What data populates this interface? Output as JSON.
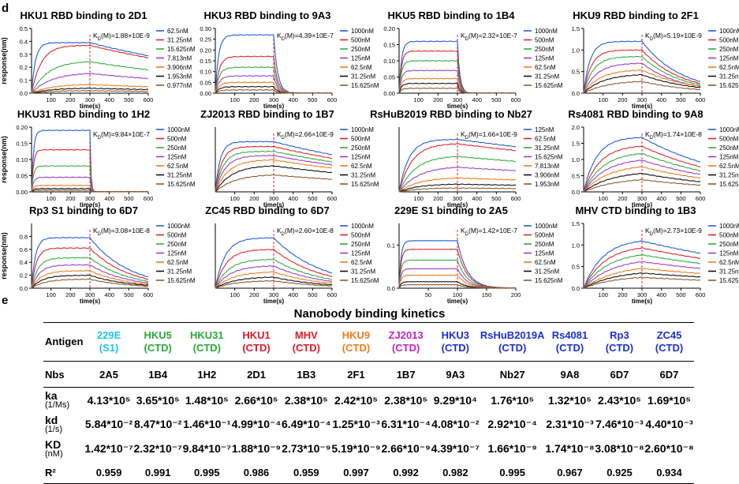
{
  "panel_letters": {
    "d": "d",
    "e": "e"
  },
  "y_axis_title": "response(nm)",
  "x_axis_title": "time(s)",
  "chart_data": [
    {
      "type": "line",
      "title": "HKU1 RBD binding to 2D1",
      "kd_label": "K",
      "kd_sub": "D",
      "kd_value": "(M)=1.88×10E-9",
      "xlim": [
        0,
        600
      ],
      "ylim": [
        0,
        0.5
      ],
      "xticks": [
        100,
        200,
        300,
        400,
        500,
        600
      ],
      "yticks": [
        0,
        0.1,
        0.2,
        0.3,
        0.4,
        0.5
      ],
      "ytick_labels": [
        "0.0",
        "0.1",
        "0.2",
        "0.3",
        "0.4",
        "0.5"
      ],
      "legend": [
        "62.5nM",
        "31.25nM",
        "15.625nM",
        "7.813nM",
        "3.906nM",
        "1.953nM",
        "0.977nM"
      ],
      "plateaus": [
        0.39,
        0.37,
        0.25,
        0.16,
        0.07,
        0.04,
        0.02
      ],
      "rates": [
        0.05,
        0.02,
        0.012,
        0.01,
        0.01,
        0.01,
        0.01
      ],
      "offs": [
        0.001,
        0.001,
        0.001,
        0.001,
        0.001,
        0.001,
        0.001
      ],
      "assoc_end": 300,
      "end": 600
    },
    {
      "type": "line",
      "title": "HKU3 RBD binding to 9A3",
      "kd_label": "K",
      "kd_sub": "D",
      "kd_value": "(M)=4.39×10E-7",
      "xlim": [
        0,
        600
      ],
      "ylim": [
        0,
        0.3
      ],
      "xticks": [
        100,
        200,
        300,
        400,
        500,
        600
      ],
      "yticks": [
        0,
        0.05,
        0.1,
        0.15,
        0.2,
        0.25,
        0.3
      ],
      "ytick_labels": [
        "0.00",
        "0.05",
        "0.10",
        "0.15",
        "0.20",
        "0.25",
        "0.30"
      ],
      "legend": [
        "1000nM",
        "500nM",
        "250nM",
        "125nM",
        "62.5nM",
        "31.25nM",
        "15.625nM"
      ],
      "plateaus": [
        0.27,
        0.17,
        0.12,
        0.08,
        0.05,
        0.03,
        0.015
      ],
      "rates": [
        0.06,
        0.05,
        0.05,
        0.05,
        0.05,
        0.05,
        0.05
      ],
      "offs": [
        0.05,
        0.05,
        0.05,
        0.05,
        0.05,
        0.05,
        0.05
      ],
      "assoc_end": 300,
      "end": 600
    },
    {
      "type": "line",
      "title": "HKU5 RBD binding to 1B4",
      "kd_label": "K",
      "kd_sub": "D",
      "kd_value": "(M)=2.32×10E-7",
      "xlim": [
        0,
        600
      ],
      "ylim": [
        0,
        0.2
      ],
      "xticks": [
        100,
        200,
        300,
        400,
        500,
        600
      ],
      "yticks": [
        0,
        0.05,
        0.1,
        0.15,
        0.2
      ],
      "ytick_labels": [
        "0.00",
        "0.05",
        "0.10",
        "0.15",
        "0.20"
      ],
      "legend": [
        "1000nM",
        "500nM",
        "250nM",
        "125nM",
        "62.5nM",
        "31.25nM",
        "15.625nM"
      ],
      "plateaus": [
        0.16,
        0.13,
        0.1,
        0.07,
        0.045,
        0.03,
        0.015
      ],
      "rates": [
        0.08,
        0.08,
        0.08,
        0.08,
        0.08,
        0.08,
        0.08
      ],
      "offs": [
        0.08,
        0.08,
        0.08,
        0.08,
        0.08,
        0.08,
        0.08
      ],
      "assoc_end": 300,
      "end": 600
    },
    {
      "type": "line",
      "title": "HKU9 RBD binding to 2F1",
      "kd_label": "K",
      "kd_sub": "D",
      "kd_value": "(M)=5.19×10E-9",
      "xlim": [
        0,
        600
      ],
      "ylim": [
        0,
        1.5
      ],
      "xticks": [
        100,
        200,
        300,
        400,
        500,
        600
      ],
      "yticks": [
        0,
        0.5,
        1.0,
        1.5
      ],
      "ytick_labels": [
        "0.0",
        "0.5",
        "1.0",
        "1.5"
      ],
      "legend": [
        "1000nM",
        "500nM",
        "250nM",
        "125nM",
        "62.5nM",
        "31.25nM",
        "15.625nM"
      ],
      "plateaus": [
        1.2,
        1.0,
        0.85,
        0.7,
        0.55,
        0.45,
        0.3
      ],
      "rates": [
        0.03,
        0.025,
        0.02,
        0.015,
        0.012,
        0.01,
        0.008
      ],
      "offs": [
        0.005,
        0.005,
        0.005,
        0.005,
        0.004,
        0.004,
        0.004
      ],
      "assoc_end": 300,
      "end": 600
    },
    {
      "type": "line",
      "title": "HKU31 RBD binding to 1H2",
      "kd_label": "K",
      "kd_sub": "D",
      "kd_value": "(M)=9.84×10E-7",
      "xlim": [
        0,
        600
      ],
      "ylim": [
        0,
        0.2
      ],
      "xticks": [
        100,
        200,
        300,
        400,
        500,
        600
      ],
      "yticks": [
        0,
        0.05,
        0.1,
        0.15,
        0.2
      ],
      "ytick_labels": [
        "0.00",
        "0.05",
        "0.10",
        "0.15",
        "0.20"
      ],
      "legend": [
        "1000nM",
        "500nM",
        "250nM",
        "125nM",
        "62.5nM",
        "31.25nM",
        "15.625nM"
      ],
      "plateaus": [
        0.19,
        0.13,
        0.08,
        0.045,
        0.02,
        0.01,
        0.005
      ],
      "rates": [
        0.1,
        0.1,
        0.1,
        0.1,
        0.1,
        0.1,
        0.1
      ],
      "offs": [
        0.2,
        0.2,
        0.2,
        0.2,
        0.2,
        0.2,
        0.2
      ],
      "assoc_end": 300,
      "end": 600
    },
    {
      "type": "line",
      "title": "ZJ2013 RBD binding to 1B7",
      "kd_label": "K",
      "kd_sub": "D",
      "kd_value": "(M)=2.66×10E-9",
      "xlim": [
        0,
        600
      ],
      "ylim": [
        0,
        0.8
      ],
      "xticks": [
        100,
        200,
        300,
        400,
        500,
        600
      ],
      "yticks": [],
      "ytick_labels": [],
      "legend": [
        "1000nM",
        "500nM",
        "250nM",
        "125nM",
        "62.5nM",
        "31.25nM",
        "15.625nM"
      ],
      "plateaus": [
        0.62,
        0.56,
        0.5,
        0.45,
        0.4,
        0.33,
        0.22
      ],
      "rates": [
        0.04,
        0.03,
        0.025,
        0.02,
        0.015,
        0.012,
        0.01
      ],
      "offs": [
        0.001,
        0.001,
        0.001,
        0.001,
        0.001,
        0.001,
        0.001
      ],
      "assoc_end": 300,
      "end": 600
    },
    {
      "type": "line",
      "title": "RsHuB2019 RBD binding to Nb27",
      "kd_label": "K",
      "kd_sub": "D",
      "kd_value": "(M)=1.66×10E-9",
      "xlim": [
        0,
        600
      ],
      "ylim": [
        0,
        0.8
      ],
      "xticks": [
        100,
        200,
        300,
        400,
        500,
        600
      ],
      "yticks": [],
      "ytick_labels": [],
      "legend": [
        "125nM",
        "62.5nM",
        "31.25nM",
        "15.625nM",
        "7.813nM",
        "3.906nM",
        "1.953nM"
      ],
      "plateaus": [
        0.65,
        0.6,
        0.45,
        0.32,
        0.18,
        0.1,
        0.05
      ],
      "rates": [
        0.02,
        0.015,
        0.012,
        0.01,
        0.01,
        0.01,
        0.01
      ],
      "offs": [
        0.0005,
        0.0005,
        0.0005,
        0.0005,
        0.0005,
        0.0005,
        0.0005
      ],
      "assoc_end": 300,
      "end": 600
    },
    {
      "type": "line",
      "title": "Rs4081 RBD binding to 9A8",
      "kd_label": "K",
      "kd_sub": "D",
      "kd_value": "(M)=1.74×10E-8",
      "xlim": [
        0,
        600
      ],
      "ylim": [
        0,
        2.0
      ],
      "xticks": [
        100,
        200,
        300,
        400,
        500,
        600
      ],
      "yticks": [
        0,
        0.5,
        1.0,
        1.5,
        2.0
      ],
      "ytick_labels": [
        "0.0",
        "0.5",
        "1.0",
        "1.5",
        "2.0"
      ],
      "legend": [
        "1000nM",
        "500nM",
        "250nM",
        "125nM",
        "62.5nM",
        "31.25nM",
        "15.625nM"
      ],
      "plateaus": [
        1.7,
        1.45,
        1.25,
        1.05,
        0.85,
        0.65,
        0.45
      ],
      "rates": [
        0.015,
        0.012,
        0.01,
        0.009,
        0.008,
        0.007,
        0.006
      ],
      "offs": [
        0.002,
        0.002,
        0.002,
        0.002,
        0.002,
        0.002,
        0.002
      ],
      "assoc_end": 300,
      "end": 600
    },
    {
      "type": "line",
      "title": "Rp3 S1 binding to 6D7",
      "kd_label": "K",
      "kd_sub": "D",
      "kd_value": "(M)=3.08×10E-8",
      "xlim": [
        0,
        600
      ],
      "ylim": [
        0,
        1.0
      ],
      "xticks": [
        100,
        200,
        300,
        400,
        500,
        600
      ],
      "yticks": [
        0,
        0.2,
        0.4,
        0.6,
        0.8
      ],
      "ytick_labels": [
        "0.0",
        "0.2",
        "0.4",
        "0.6",
        "0.8"
      ],
      "legend": [
        "1000nM",
        "500nM",
        "250nM",
        "125nM",
        "62.5nM",
        "31.25nM",
        "15.625nM"
      ],
      "plateaus": [
        0.78,
        0.62,
        0.47,
        0.36,
        0.27,
        0.2,
        0.14
      ],
      "rates": [
        0.05,
        0.04,
        0.03,
        0.025,
        0.02,
        0.018,
        0.015
      ],
      "offs": [
        0.005,
        0.005,
        0.005,
        0.005,
        0.005,
        0.005,
        0.005
      ],
      "assoc_end": 300,
      "end": 600
    },
    {
      "type": "line",
      "title": "ZC45 RBD binding to 6D7",
      "kd_label": "K",
      "kd_sub": "D",
      "kd_value": "(M)=2.60×10E-8",
      "xlim": [
        0,
        600
      ],
      "ylim": [
        0,
        1.0
      ],
      "xticks": [
        100,
        200,
        300,
        400,
        500,
        600
      ],
      "yticks": [],
      "ytick_labels": [],
      "legend": [
        "1000nM",
        "500nM",
        "250nM",
        "125nM",
        "62.5nM",
        "31.25nM",
        "15.625nM"
      ],
      "plateaus": [
        0.78,
        0.6,
        0.45,
        0.35,
        0.26,
        0.18,
        0.12
      ],
      "rates": [
        0.02,
        0.018,
        0.015,
        0.013,
        0.011,
        0.01,
        0.01
      ],
      "offs": [
        0.004,
        0.004,
        0.004,
        0.004,
        0.004,
        0.004,
        0.004
      ],
      "assoc_end": 300,
      "end": 600
    },
    {
      "type": "line",
      "title": "229E S1 binding to 2A5",
      "kd_label": "K",
      "kd_sub": "D",
      "kd_value": "(M)=1.42×10E-7",
      "xlim": [
        0,
        200
      ],
      "ylim": [
        0,
        0.15
      ],
      "xticks": [
        50,
        100,
        150,
        200
      ],
      "yticks": [
        0,
        0.1
      ],
      "ytick_labels": [
        "0.0",
        "0.1"
      ],
      "legend": [
        "1000nM",
        "500nM",
        "250nM",
        "125nM",
        "62.5nM",
        "31.25nM",
        "15.625nM"
      ],
      "plateaus": [
        0.11,
        0.09,
        0.065,
        0.045,
        0.03,
        0.015,
        0.008
      ],
      "rates": [
        0.3,
        0.3,
        0.3,
        0.3,
        0.3,
        0.3,
        0.3
      ],
      "offs": [
        0.06,
        0.06,
        0.06,
        0.06,
        0.06,
        0.06,
        0.06
      ],
      "assoc_end": 100,
      "end": 200
    },
    {
      "type": "line",
      "title": "MHV CTD binding to 1B3",
      "kd_label": "K",
      "kd_sub": "D",
      "kd_value": "(M)=2.73×10E-9",
      "xlim": [
        0,
        600
      ],
      "ylim": [
        0,
        1.5
      ],
      "xticks": [
        100,
        200,
        300,
        400,
        500,
        600
      ],
      "yticks": [
        0,
        0.5,
        1.0,
        1.5
      ],
      "ytick_labels": [
        "0.0",
        "0.5",
        "1.0",
        "1.5"
      ],
      "legend": [
        "1000nM",
        "500nM",
        "250nM",
        "125nM",
        "62.5nM",
        "31.25nM",
        "15.625nM"
      ],
      "plateaus": [
        1.15,
        1.0,
        0.85,
        0.7,
        0.55,
        0.42,
        0.3
      ],
      "rates": [
        0.01,
        0.009,
        0.008,
        0.007,
        0.006,
        0.006,
        0.006
      ],
      "offs": [
        0.001,
        0.001,
        0.001,
        0.001,
        0.001,
        0.001,
        0.001
      ],
      "assoc_end": 300,
      "end": 600
    }
  ],
  "series_colors": [
    "#1f5fd6",
    "#e0262a",
    "#2fae3f",
    "#9b3fc7",
    "#f07c1a",
    "#111111",
    "#8a5a2b"
  ],
  "table": {
    "title": "Nanobody binding kinetics",
    "row_labels": {
      "antigen": "Antigen",
      "nbs": "Nbs",
      "ka": "ka",
      "ka_unit": "(1/Ms)",
      "kd": "kd",
      "kd_unit": "(1/s)",
      "KD": "KD",
      "KD_unit": "(nM)",
      "r2": "R²"
    },
    "columns": [
      {
        "antigen": "229E",
        "sub": "(S1)",
        "color": "#22c3e6",
        "nb": "2A5",
        "ka": "4.13*10⁵",
        "kd": "5.84*10⁻²",
        "KD": "1.42*10⁻⁷",
        "r2": "0.959"
      },
      {
        "antigen": "HKU5",
        "sub": "(CTD)",
        "color": "#2aa83a",
        "nb": "1B4",
        "ka": "3.65*10⁵",
        "kd": "8.47*10⁻²",
        "KD": "2.32*10⁻⁷",
        "r2": "0.991"
      },
      {
        "antigen": "HKU31",
        "sub": "(CTD)",
        "color": "#2aa83a",
        "nb": "1H2",
        "ka": "1.48*10⁵",
        "kd": "1.46*10⁻¹",
        "KD": "9.84*10⁻⁷",
        "r2": "0.995"
      },
      {
        "antigen": "HKU1",
        "sub": "(CTD)",
        "color": "#e0182a",
        "nb": "2D1",
        "ka": "2.66*10⁵",
        "kd": "4.99*10⁻⁴",
        "KD": "1.88*10⁻⁹",
        "r2": "0.986"
      },
      {
        "antigen": "MHV",
        "sub": "(CTD)",
        "color": "#e0182a",
        "nb": "1B3",
        "ka": "2.38*10⁵",
        "kd": "6.49*10⁻⁴",
        "KD": "2.73*10⁻⁹",
        "r2": "0.959"
      },
      {
        "antigen": "HKU9",
        "sub": "(CTD)",
        "color": "#f07c1a",
        "nb": "2F1",
        "ka": "2.42*10⁵",
        "kd": "1.25*10⁻³",
        "KD": "5.19*10⁻⁹",
        "r2": "0.997"
      },
      {
        "antigen": "ZJ2013",
        "sub": "(CTD)",
        "color": "#c023c8",
        "nb": "1B7",
        "ka": "2.38*10⁵",
        "kd": "6.31*10⁻⁴",
        "KD": "2.66*10⁻⁹",
        "r2": "0.992"
      },
      {
        "antigen": "HKU3",
        "sub": "(CTD)",
        "color": "#1c2fd8",
        "nb": "9A3",
        "ka": "9.29*10⁴",
        "kd": "4.08*10⁻²",
        "KD": "4.39*10⁻⁷",
        "r2": "0.982"
      },
      {
        "antigen": "RsHuB2019A",
        "sub": "(CTD)",
        "color": "#1c2fd8",
        "nb": "Nb27",
        "ka": "1.76*10⁵",
        "kd": "2.92*10⁻⁴",
        "KD": "1.66*10⁻⁹",
        "r2": "0.995"
      },
      {
        "antigen": "Rs4081",
        "sub": "(CTD)",
        "color": "#1c2fd8",
        "nb": "9A8",
        "ka": "1.32*10⁵",
        "kd": "2.31*10⁻³",
        "KD": "1.74*10⁻⁸",
        "r2": "0.967"
      },
      {
        "antigen": "Rp3",
        "sub": "(CTD)",
        "color": "#1c2fd8",
        "nb": "6D7",
        "ka": "2.43*10⁵",
        "kd": "7.46*10⁻³",
        "KD": "3.08*10⁻⁸",
        "r2": "0.925"
      },
      {
        "antigen": "ZC45",
        "sub": "(CTD)",
        "color": "#1c2fd8",
        "nb": "6D7",
        "ka": "1.69*10⁵",
        "kd": "4.40*10⁻³",
        "KD": "2.60*10⁻⁸",
        "r2": "0.934"
      }
    ]
  }
}
